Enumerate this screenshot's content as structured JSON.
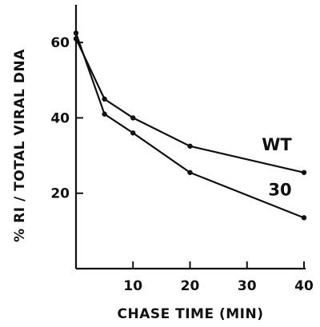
{
  "chart_data": {
    "type": "line",
    "title": "",
    "xlabel": "CHASE TIME   (MIN)",
    "ylabel": "% RI / TOTAL VIRAL DNA",
    "xlim": [
      0,
      40
    ],
    "ylim": [
      0,
      70
    ],
    "xticks": [
      10,
      20,
      30,
      40
    ],
    "yticks": [
      20,
      40,
      60
    ],
    "legend": "inline-labels",
    "grid": false,
    "series": [
      {
        "name": "WT",
        "x": [
          0,
          5,
          10,
          20,
          40
        ],
        "y": [
          61,
          45,
          40,
          32.5,
          25.5
        ]
      },
      {
        "name": "30",
        "x": [
          0,
          5,
          10,
          20,
          40
        ],
        "y": [
          62.5,
          41,
          36,
          25.5,
          13.5
        ]
      }
    ]
  }
}
